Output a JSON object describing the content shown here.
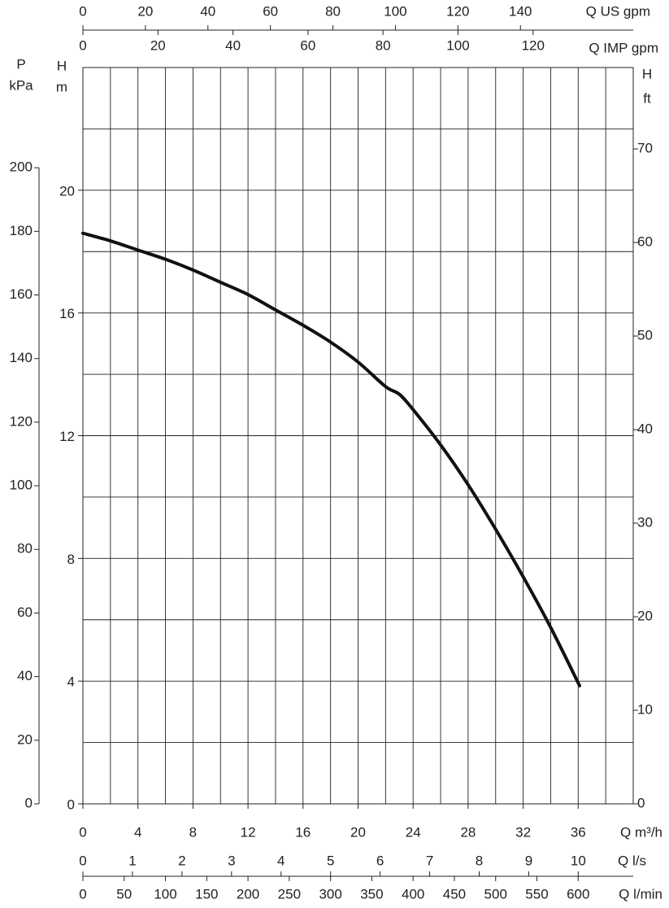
{
  "chart_data": {
    "type": "line",
    "x": [
      0,
      2,
      4,
      6,
      8,
      10,
      12,
      14,
      16,
      18,
      20,
      22,
      23,
      24,
      26,
      28,
      30,
      32,
      34,
      36.1
    ],
    "series": [
      {
        "color": "#111111",
        "values": [
          18.6,
          18.35,
          18.05,
          17.75,
          17.4,
          17.0,
          16.6,
          16.1,
          15.6,
          15.05,
          14.4,
          13.6,
          13.35,
          12.85,
          11.7,
          10.4,
          8.95,
          7.4,
          5.75,
          3.85
        ]
      }
    ],
    "xlim": [
      0,
      40
    ],
    "xticks": [
      0,
      4,
      8,
      12,
      16,
      20,
      24,
      28,
      32,
      36
    ],
    "xlabel": "Q m³/h",
    "ylim": [
      0,
      24
    ],
    "yticks": [
      0,
      4,
      8,
      12,
      16,
      20
    ],
    "ylabel": [
      "H",
      "m"
    ],
    "xgrid": [
      0,
      2,
      4,
      6,
      8,
      10,
      12,
      14,
      16,
      18,
      20,
      22,
      24,
      26,
      28,
      30,
      32,
      34,
      36,
      38,
      40
    ],
    "ygrid": [
      0,
      2,
      4,
      6,
      8,
      10,
      12,
      14,
      16,
      18,
      20,
      22,
      24
    ],
    "p_axis": {
      "label": [
        "P",
        "kPa"
      ],
      "lim": [
        0,
        231.5
      ],
      "ticks": [
        0,
        20,
        40,
        60,
        80,
        100,
        120,
        140,
        160,
        180,
        200
      ]
    },
    "ft_axis": {
      "label": [
        "H",
        "ft"
      ],
      "lim": [
        0,
        78.7
      ],
      "ticks": [
        0,
        10,
        20,
        30,
        40,
        50,
        60,
        70
      ]
    },
    "us_gpm_axis": {
      "label": "Q US gpm",
      "lim": [
        0,
        176.1
      ],
      "ticks": [
        0,
        20,
        40,
        60,
        80,
        100,
        120,
        140
      ]
    },
    "imp_gpm_axis": {
      "label": "Q IMP gpm",
      "lim": [
        0,
        146.7
      ],
      "ticks": [
        0,
        20,
        40,
        60,
        80,
        100,
        120
      ]
    },
    "ls_axis": {
      "label": "Q l/s",
      "lim": [
        0,
        11.11
      ],
      "ticks": [
        0,
        1,
        2,
        3,
        4,
        5,
        6,
        7,
        8,
        9,
        10
      ]
    },
    "lmin_axis": {
      "label": "Q l/min",
      "lim": [
        0,
        666.7
      ],
      "ticks": [
        0,
        50,
        100,
        150,
        200,
        250,
        300,
        350,
        400,
        450,
        500,
        550,
        600
      ]
    }
  }
}
